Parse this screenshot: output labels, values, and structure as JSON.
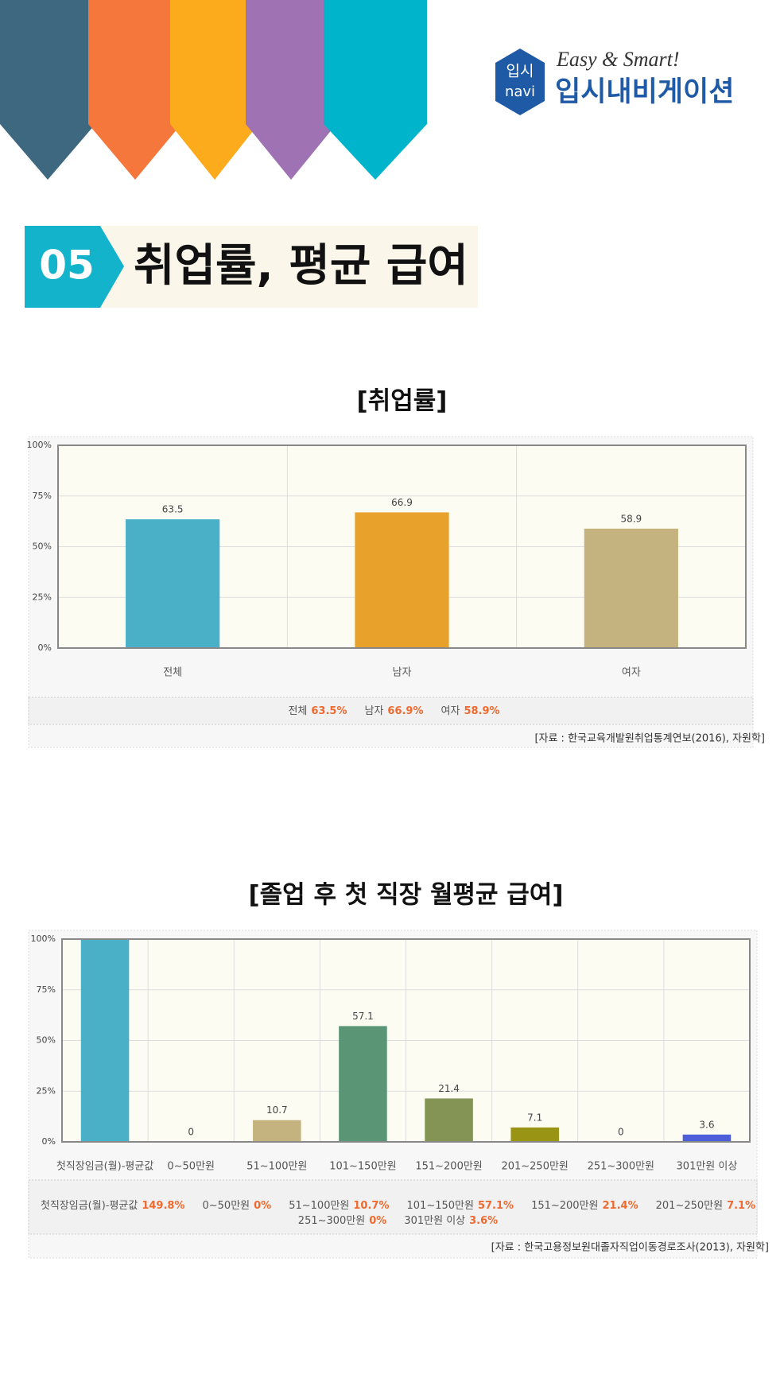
{
  "header": {
    "logo_badge": [
      "입시",
      "navi"
    ],
    "slogan": "Easy & Smart!",
    "brand": "입시내비게이션"
  },
  "section": {
    "number": "05",
    "title": "취업률, 평균 급여"
  },
  "chart_data": [
    {
      "type": "bar",
      "title": "[취업률]",
      "categories": [
        "전체",
        "남자",
        "여자"
      ],
      "values": [
        63.5,
        66.9,
        58.9
      ],
      "value_labels": [
        "63.5%",
        "66.9%",
        "58.9%"
      ],
      "colors": [
        "#4ab0c8",
        "#e8a22c",
        "#c4b37e"
      ],
      "ylim": [
        0,
        100
      ],
      "yticks": [
        {
          "value": 0,
          "label": "0%"
        },
        {
          "value": 25,
          "label": "25%"
        },
        {
          "value": 50,
          "label": "50%"
        },
        {
          "value": 75,
          "label": "75%"
        },
        {
          "value": 100,
          "label": "100%"
        }
      ],
      "grid": true,
      "source": "[자료 : 한국교육개발원취업통계연보(2016), 자원학]"
    },
    {
      "type": "bar",
      "title": "[졸업 후 첫 직장 월평균 급여]",
      "categories": [
        "첫직장임금(월)-평균값",
        "0~50만원",
        "51~100만원",
        "101~150만원",
        "151~200만원",
        "201~250만원",
        "251~300만원",
        "301만원 이상"
      ],
      "values": [
        149.8,
        0,
        10.7,
        57.1,
        21.4,
        7.1,
        0,
        3.6
      ],
      "value_labels": [
        "149.8%",
        "0%",
        "10.7%",
        "57.1%",
        "21.4%",
        "7.1%",
        "0%",
        "3.6%"
      ],
      "colors": [
        "#4ab0c8",
        "#e8a22c",
        "#c4b37e",
        "#5a9575",
        "#849455",
        "#999414",
        "#a090c0",
        "#4d5fd8"
      ],
      "ylim": [
        0,
        100
      ],
      "yticks": [
        {
          "value": 0,
          "label": "0%"
        },
        {
          "value": 25,
          "label": "25%"
        },
        {
          "value": 50,
          "label": "50%"
        },
        {
          "value": 75,
          "label": "75%"
        },
        {
          "value": 100,
          "label": "100%"
        }
      ],
      "grid": true,
      "source": "[자료 : 한국고용정보원대졸자직업이동경로조사(2013), 자원학]"
    }
  ]
}
